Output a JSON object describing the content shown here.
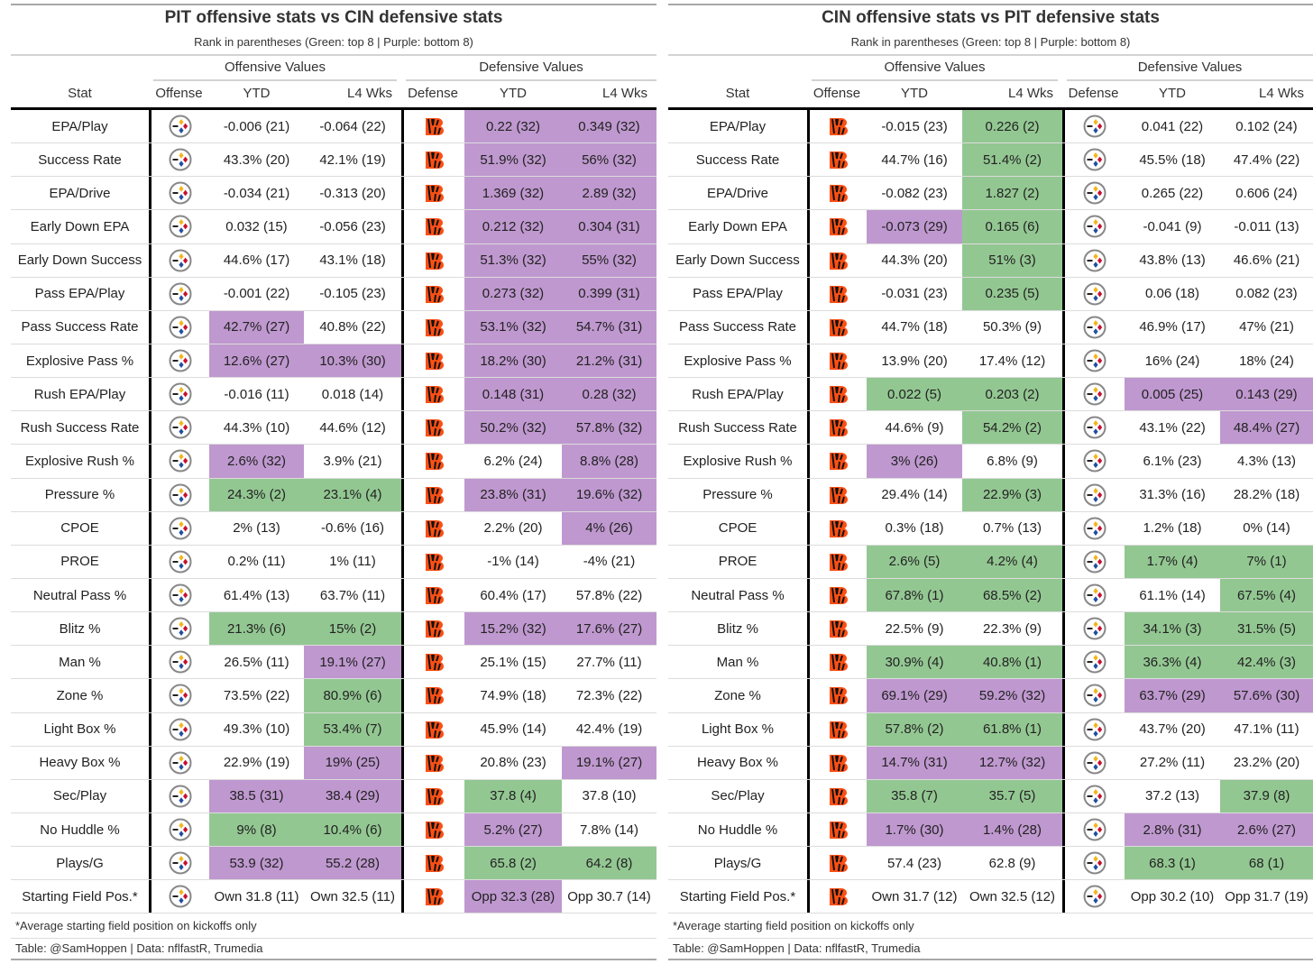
{
  "colors": {
    "green": "#93c792",
    "purple": "#bf98cf"
  },
  "tables": [
    {
      "title": "PIT offensive stats vs CIN defensive stats",
      "subtitle": "Rank in parentheses (Green: top 8 | Purple: bottom 8)",
      "spanners": [
        "Offensive Values",
        "Defensive Values"
      ],
      "columns": [
        "Stat",
        "Offense",
        "YTD",
        "L4 Wks",
        "Defense",
        "YTD",
        "L4 Wks"
      ],
      "offense_logo": "steelers-logo",
      "defense_logo": "bengals-logo",
      "rows": [
        {
          "stat": "EPA/Play",
          "cells": [
            [
              "-0.006 (21)",
              ""
            ],
            [
              "-0.064 (22)",
              ""
            ],
            [
              "0.22 (32)",
              "p"
            ],
            [
              "0.349 (32)",
              "p"
            ]
          ]
        },
        {
          "stat": "Success Rate",
          "cells": [
            [
              "43.3% (20)",
              ""
            ],
            [
              "42.1% (19)",
              ""
            ],
            [
              "51.9% (32)",
              "p"
            ],
            [
              "56% (32)",
              "p"
            ]
          ]
        },
        {
          "stat": "EPA/Drive",
          "cells": [
            [
              "-0.034 (21)",
              ""
            ],
            [
              "-0.313 (20)",
              ""
            ],
            [
              "1.369 (32)",
              "p"
            ],
            [
              "2.89 (32)",
              "p"
            ]
          ]
        },
        {
          "stat": "Early Down EPA",
          "cells": [
            [
              "0.032 (15)",
              ""
            ],
            [
              "-0.056 (23)",
              ""
            ],
            [
              "0.212 (32)",
              "p"
            ],
            [
              "0.304 (31)",
              "p"
            ]
          ]
        },
        {
          "stat": "Early Down Success",
          "cells": [
            [
              "44.6% (17)",
              ""
            ],
            [
              "43.1% (18)",
              ""
            ],
            [
              "51.3% (32)",
              "p"
            ],
            [
              "55% (32)",
              "p"
            ]
          ]
        },
        {
          "stat": "Pass EPA/Play",
          "cells": [
            [
              "-0.001 (22)",
              ""
            ],
            [
              "-0.105 (23)",
              ""
            ],
            [
              "0.273 (32)",
              "p"
            ],
            [
              "0.399 (31)",
              "p"
            ]
          ]
        },
        {
          "stat": "Pass Success Rate",
          "cells": [
            [
              "42.7% (27)",
              "p"
            ],
            [
              "40.8% (22)",
              ""
            ],
            [
              "53.1% (32)",
              "p"
            ],
            [
              "54.7% (31)",
              "p"
            ]
          ]
        },
        {
          "stat": "Explosive Pass %",
          "cells": [
            [
              "12.6% (27)",
              "p"
            ],
            [
              "10.3% (30)",
              "p"
            ],
            [
              "18.2% (30)",
              "p"
            ],
            [
              "21.2% (31)",
              "p"
            ]
          ]
        },
        {
          "stat": "Rush EPA/Play",
          "cells": [
            [
              "-0.016 (11)",
              ""
            ],
            [
              "0.018 (14)",
              ""
            ],
            [
              "0.148 (31)",
              "p"
            ],
            [
              "0.28 (32)",
              "p"
            ]
          ]
        },
        {
          "stat": "Rush Success Rate",
          "cells": [
            [
              "44.3% (10)",
              ""
            ],
            [
              "44.6% (12)",
              ""
            ],
            [
              "50.2% (32)",
              "p"
            ],
            [
              "57.8% (32)",
              "p"
            ]
          ]
        },
        {
          "stat": "Explosive Rush %",
          "cells": [
            [
              "2.6% (32)",
              "p"
            ],
            [
              "3.9% (21)",
              ""
            ],
            [
              "6.2% (24)",
              ""
            ],
            [
              "8.8% (28)",
              "p"
            ]
          ]
        },
        {
          "stat": "Pressure %",
          "cells": [
            [
              "24.3% (2)",
              "g"
            ],
            [
              "23.1% (4)",
              "g"
            ],
            [
              "23.8% (31)",
              "p"
            ],
            [
              "19.6% (32)",
              "p"
            ]
          ]
        },
        {
          "stat": "CPOE",
          "cells": [
            [
              "2% (13)",
              ""
            ],
            [
              "-0.6% (16)",
              ""
            ],
            [
              "2.2% (20)",
              ""
            ],
            [
              "4% (26)",
              "p"
            ]
          ]
        },
        {
          "stat": "PROE",
          "cells": [
            [
              "0.2% (11)",
              ""
            ],
            [
              "1% (11)",
              ""
            ],
            [
              "-1% (14)",
              ""
            ],
            [
              "-4% (21)",
              ""
            ]
          ]
        },
        {
          "stat": "Neutral Pass %",
          "cells": [
            [
              "61.4% (13)",
              ""
            ],
            [
              "63.7% (11)",
              ""
            ],
            [
              "60.4% (17)",
              ""
            ],
            [
              "57.8% (22)",
              ""
            ]
          ]
        },
        {
          "stat": "Blitz %",
          "cells": [
            [
              "21.3% (6)",
              "g"
            ],
            [
              "15% (2)",
              "g"
            ],
            [
              "15.2% (32)",
              "p"
            ],
            [
              "17.6% (27)",
              "p"
            ]
          ]
        },
        {
          "stat": "Man %",
          "cells": [
            [
              "26.5% (11)",
              ""
            ],
            [
              "19.1% (27)",
              "p"
            ],
            [
              "25.1% (15)",
              ""
            ],
            [
              "27.7% (11)",
              ""
            ]
          ]
        },
        {
          "stat": "Zone %",
          "cells": [
            [
              "73.5% (22)",
              ""
            ],
            [
              "80.9% (6)",
              "g"
            ],
            [
              "74.9% (18)",
              ""
            ],
            [
              "72.3% (22)",
              ""
            ]
          ]
        },
        {
          "stat": "Light Box %",
          "cells": [
            [
              "49.3% (10)",
              ""
            ],
            [
              "53.4% (7)",
              "g"
            ],
            [
              "45.9% (14)",
              ""
            ],
            [
              "42.4% (19)",
              ""
            ]
          ]
        },
        {
          "stat": "Heavy Box %",
          "cells": [
            [
              "22.9% (19)",
              ""
            ],
            [
              "19% (25)",
              "p"
            ],
            [
              "20.8% (23)",
              ""
            ],
            [
              "19.1% (27)",
              "p"
            ]
          ]
        },
        {
          "stat": "Sec/Play",
          "cells": [
            [
              "38.5 (31)",
              "p"
            ],
            [
              "38.4 (29)",
              "p"
            ],
            [
              "37.8 (4)",
              "g"
            ],
            [
              "37.8 (10)",
              ""
            ]
          ]
        },
        {
          "stat": "No Huddle %",
          "cells": [
            [
              "9% (8)",
              "g"
            ],
            [
              "10.4% (6)",
              "g"
            ],
            [
              "5.2% (27)",
              "p"
            ],
            [
              "7.8% (14)",
              ""
            ]
          ]
        },
        {
          "stat": "Plays/G",
          "cells": [
            [
              "53.9 (32)",
              "p"
            ],
            [
              "55.2 (28)",
              "p"
            ],
            [
              "65.8 (2)",
              "g"
            ],
            [
              "64.2 (8)",
              "g"
            ]
          ]
        },
        {
          "stat": "Starting Field Pos.*",
          "cells": [
            [
              "Own 31.8 (11)",
              ""
            ],
            [
              "Own 32.5 (11)",
              ""
            ],
            [
              "Opp 32.3 (28)",
              "p"
            ],
            [
              "Opp 30.7 (14)",
              ""
            ]
          ]
        }
      ],
      "footnote": "*Average starting field position on kickoffs only",
      "source": "Table: @SamHoppen | Data: nflfastR, Trumedia"
    },
    {
      "title": "CIN offensive stats vs PIT defensive stats",
      "subtitle": "Rank in parentheses (Green: top 8 | Purple: bottom 8)",
      "spanners": [
        "Offensive Values",
        "Defensive Values"
      ],
      "columns": [
        "Stat",
        "Offense",
        "YTD",
        "L4 Wks",
        "Defense",
        "YTD",
        "L4 Wks"
      ],
      "offense_logo": "bengals-logo",
      "defense_logo": "steelers-logo",
      "rows": [
        {
          "stat": "EPA/Play",
          "cells": [
            [
              "-0.015 (23)",
              ""
            ],
            [
              "0.226 (2)",
              "g"
            ],
            [
              "0.041 (22)",
              ""
            ],
            [
              "0.102 (24)",
              ""
            ]
          ]
        },
        {
          "stat": "Success Rate",
          "cells": [
            [
              "44.7% (16)",
              ""
            ],
            [
              "51.4% (2)",
              "g"
            ],
            [
              "45.5% (18)",
              ""
            ],
            [
              "47.4% (22)",
              ""
            ]
          ]
        },
        {
          "stat": "EPA/Drive",
          "cells": [
            [
              "-0.082 (23)",
              ""
            ],
            [
              "1.827 (2)",
              "g"
            ],
            [
              "0.265 (22)",
              ""
            ],
            [
              "0.606 (24)",
              ""
            ]
          ]
        },
        {
          "stat": "Early Down EPA",
          "cells": [
            [
              "-0.073 (29)",
              "p"
            ],
            [
              "0.165 (6)",
              "g"
            ],
            [
              "-0.041 (9)",
              ""
            ],
            [
              "-0.011 (13)",
              ""
            ]
          ]
        },
        {
          "stat": "Early Down Success",
          "cells": [
            [
              "44.3% (20)",
              ""
            ],
            [
              "51% (3)",
              "g"
            ],
            [
              "43.8% (13)",
              ""
            ],
            [
              "46.6% (21)",
              ""
            ]
          ]
        },
        {
          "stat": "Pass EPA/Play",
          "cells": [
            [
              "-0.031 (23)",
              ""
            ],
            [
              "0.235 (5)",
              "g"
            ],
            [
              "0.06 (18)",
              ""
            ],
            [
              "0.082 (23)",
              ""
            ]
          ]
        },
        {
          "stat": "Pass Success Rate",
          "cells": [
            [
              "44.7% (18)",
              ""
            ],
            [
              "50.3% (9)",
              ""
            ],
            [
              "46.9% (17)",
              ""
            ],
            [
              "47% (21)",
              ""
            ]
          ]
        },
        {
          "stat": "Explosive Pass %",
          "cells": [
            [
              "13.9% (20)",
              ""
            ],
            [
              "17.4% (12)",
              ""
            ],
            [
              "16% (24)",
              ""
            ],
            [
              "18% (24)",
              ""
            ]
          ]
        },
        {
          "stat": "Rush EPA/Play",
          "cells": [
            [
              "0.022 (5)",
              "g"
            ],
            [
              "0.203 (2)",
              "g"
            ],
            [
              "0.005 (25)",
              "p"
            ],
            [
              "0.143 (29)",
              "p"
            ]
          ]
        },
        {
          "stat": "Rush Success Rate",
          "cells": [
            [
              "44.6% (9)",
              ""
            ],
            [
              "54.2% (2)",
              "g"
            ],
            [
              "43.1% (22)",
              ""
            ],
            [
              "48.4% (27)",
              "p"
            ]
          ]
        },
        {
          "stat": "Explosive Rush %",
          "cells": [
            [
              "3% (26)",
              "p"
            ],
            [
              "6.8% (9)",
              ""
            ],
            [
              "6.1% (23)",
              ""
            ],
            [
              "4.3% (13)",
              ""
            ]
          ]
        },
        {
          "stat": "Pressure %",
          "cells": [
            [
              "29.4% (14)",
              ""
            ],
            [
              "22.9% (3)",
              "g"
            ],
            [
              "31.3% (16)",
              ""
            ],
            [
              "28.2% (18)",
              ""
            ]
          ]
        },
        {
          "stat": "CPOE",
          "cells": [
            [
              "0.3% (18)",
              ""
            ],
            [
              "0.7% (13)",
              ""
            ],
            [
              "1.2% (18)",
              ""
            ],
            [
              "0% (14)",
              ""
            ]
          ]
        },
        {
          "stat": "PROE",
          "cells": [
            [
              "2.6% (5)",
              "g"
            ],
            [
              "4.2% (4)",
              "g"
            ],
            [
              "1.7% (4)",
              "g"
            ],
            [
              "7% (1)",
              "g"
            ]
          ]
        },
        {
          "stat": "Neutral Pass %",
          "cells": [
            [
              "67.8% (1)",
              "g"
            ],
            [
              "68.5% (2)",
              "g"
            ],
            [
              "61.1% (14)",
              ""
            ],
            [
              "67.5% (4)",
              "g"
            ]
          ]
        },
        {
          "stat": "Blitz %",
          "cells": [
            [
              "22.5% (9)",
              ""
            ],
            [
              "22.3% (9)",
              ""
            ],
            [
              "34.1% (3)",
              "g"
            ],
            [
              "31.5% (5)",
              "g"
            ]
          ]
        },
        {
          "stat": "Man %",
          "cells": [
            [
              "30.9% (4)",
              "g"
            ],
            [
              "40.8% (1)",
              "g"
            ],
            [
              "36.3% (4)",
              "g"
            ],
            [
              "42.4% (3)",
              "g"
            ]
          ]
        },
        {
          "stat": "Zone %",
          "cells": [
            [
              "69.1% (29)",
              "p"
            ],
            [
              "59.2% (32)",
              "p"
            ],
            [
              "63.7% (29)",
              "p"
            ],
            [
              "57.6% (30)",
              "p"
            ]
          ]
        },
        {
          "stat": "Light Box %",
          "cells": [
            [
              "57.8% (2)",
              "g"
            ],
            [
              "61.8% (1)",
              "g"
            ],
            [
              "43.7% (20)",
              ""
            ],
            [
              "47.1% (11)",
              ""
            ]
          ]
        },
        {
          "stat": "Heavy Box %",
          "cells": [
            [
              "14.7% (31)",
              "p"
            ],
            [
              "12.7% (32)",
              "p"
            ],
            [
              "27.2% (11)",
              ""
            ],
            [
              "23.2% (20)",
              ""
            ]
          ]
        },
        {
          "stat": "Sec/Play",
          "cells": [
            [
              "35.8 (7)",
              "g"
            ],
            [
              "35.7 (5)",
              "g"
            ],
            [
              "37.2 (13)",
              ""
            ],
            [
              "37.9 (8)",
              "g"
            ]
          ]
        },
        {
          "stat": "No Huddle %",
          "cells": [
            [
              "1.7% (30)",
              "p"
            ],
            [
              "1.4% (28)",
              "p"
            ],
            [
              "2.8% (31)",
              "p"
            ],
            [
              "2.6% (27)",
              "p"
            ]
          ]
        },
        {
          "stat": "Plays/G",
          "cells": [
            [
              "57.4 (23)",
              ""
            ],
            [
              "62.8 (9)",
              ""
            ],
            [
              "68.3 (1)",
              "g"
            ],
            [
              "68 (1)",
              "g"
            ]
          ]
        },
        {
          "stat": "Starting Field Pos.*",
          "cells": [
            [
              "Own 31.7 (12)",
              ""
            ],
            [
              "Own 32.5 (12)",
              ""
            ],
            [
              "Opp 30.2 (10)",
              ""
            ],
            [
              "Opp 31.7 (19)",
              ""
            ]
          ]
        }
      ],
      "footnote": "*Average starting field position on kickoffs only",
      "source": "Table: @SamHoppen | Data: nflfastR, Trumedia"
    }
  ]
}
